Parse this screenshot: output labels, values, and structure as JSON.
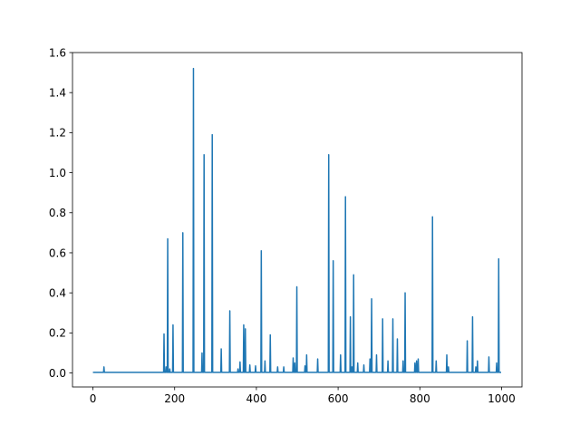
{
  "colors": {
    "series": "#1f77b4",
    "axes": "#000000",
    "background": "#ffffff"
  },
  "chart_data": {
    "type": "line",
    "title": "",
    "xlabel": "",
    "ylabel": "",
    "xlim": [
      -50,
      1050
    ],
    "ylim": [
      -0.07,
      1.6
    ],
    "xticks": [
      0,
      200,
      400,
      600,
      800,
      1000
    ],
    "yticks": [
      0.0,
      0.2,
      0.4,
      0.6,
      0.8,
      1.0,
      1.2,
      1.4,
      1.6
    ],
    "xtick_labels": [
      "0",
      "200",
      "400",
      "600",
      "800",
      "1000"
    ],
    "ytick_labels": [
      "0.0",
      "0.2",
      "0.4",
      "0.6",
      "0.8",
      "1.0",
      "1.2",
      "1.4",
      "1.6"
    ],
    "grid": false,
    "legend": "none",
    "series": [
      {
        "x_range": [
          0,
          999
        ],
        "baseline": 0.003,
        "spikes": [
          [
            27,
            0.03
          ],
          [
            174,
            0.195
          ],
          [
            179,
            0.03
          ],
          [
            183,
            0.67
          ],
          [
            188,
            0.02
          ],
          [
            196,
            0.24
          ],
          [
            220,
            0.7
          ],
          [
            246,
            1.52
          ],
          [
            267,
            0.1
          ],
          [
            272,
            1.09
          ],
          [
            292,
            1.19
          ],
          [
            314,
            0.12
          ],
          [
            335,
            0.31
          ],
          [
            355,
            0.02
          ],
          [
            360,
            0.055
          ],
          [
            369,
            0.24
          ],
          [
            373,
            0.22
          ],
          [
            384,
            0.04
          ],
          [
            398,
            0.035
          ],
          [
            412,
            0.61
          ],
          [
            421,
            0.06
          ],
          [
            434,
            0.19
          ],
          [
            452,
            0.03
          ],
          [
            467,
            0.03
          ],
          [
            490,
            0.075
          ],
          [
            494,
            0.05
          ],
          [
            499,
            0.43
          ],
          [
            519,
            0.035
          ],
          [
            523,
            0.09
          ],
          [
            550,
            0.07
          ],
          [
            577,
            1.09
          ],
          [
            588,
            0.56
          ],
          [
            606,
            0.09
          ],
          [
            618,
            0.88
          ],
          [
            630,
            0.28
          ],
          [
            634,
            0.03
          ],
          [
            638,
            0.49
          ],
          [
            648,
            0.05
          ],
          [
            663,
            0.04
          ],
          [
            678,
            0.07
          ],
          [
            682,
            0.37
          ],
          [
            694,
            0.09
          ],
          [
            709,
            0.27
          ],
          [
            722,
            0.06
          ],
          [
            734,
            0.27
          ],
          [
            745,
            0.17
          ],
          [
            759,
            0.06
          ],
          [
            764,
            0.4
          ],
          [
            788,
            0.05
          ],
          [
            792,
            0.06
          ],
          [
            796,
            0.07
          ],
          [
            831,
            0.78
          ],
          [
            840,
            0.06
          ],
          [
            866,
            0.09
          ],
          [
            870,
            0.03
          ],
          [
            916,
            0.16
          ],
          [
            929,
            0.28
          ],
          [
            937,
            0.03
          ],
          [
            941,
            0.06
          ],
          [
            969,
            0.08
          ],
          [
            988,
            0.05
          ],
          [
            993,
            0.57
          ]
        ]
      }
    ]
  }
}
